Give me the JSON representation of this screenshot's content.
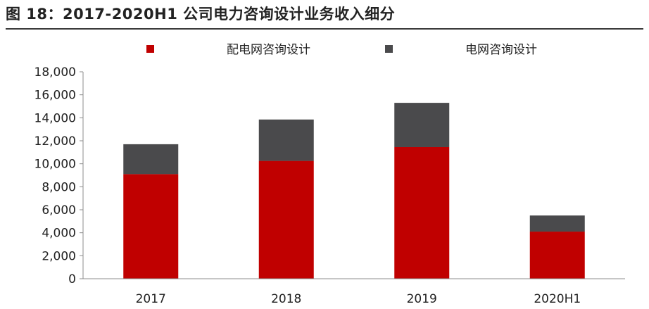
{
  "figure_title": "图 18：2017-2020H1 公司电力咨询设计业务收入细分",
  "chart_data": {
    "type": "bar",
    "stacked": true,
    "title": "图 18：2017-2020H1 公司电力咨询设计业务收入细分",
    "categories": [
      "2017",
      "2018",
      "2019",
      "2020H1"
    ],
    "series": [
      {
        "name": "配电网咨询设计",
        "color": "#c00000",
        "values": [
          9100,
          10250,
          11450,
          4100
        ]
      },
      {
        "name": "电网咨询设计",
        "color": "#4a4a4c",
        "values": [
          2600,
          3600,
          3850,
          1400
        ]
      }
    ],
    "ylim": [
      0,
      18000
    ],
    "yticks": [
      0,
      2000,
      4000,
      6000,
      8000,
      10000,
      12000,
      14000,
      16000,
      18000
    ],
    "ytick_labels": [
      "0",
      "2,000",
      "4,000",
      "6,000",
      "8,000",
      "10,000",
      "12,000",
      "14,000",
      "16,000",
      "18,000"
    ],
    "xlabel": "",
    "ylabel": "",
    "legend_position": "top-center",
    "grid": false
  }
}
